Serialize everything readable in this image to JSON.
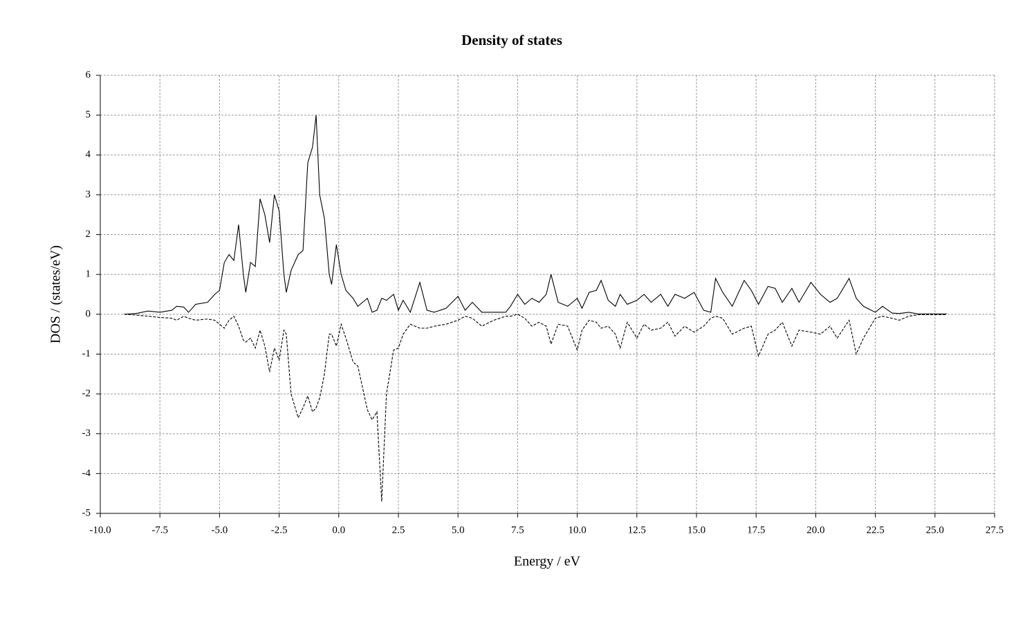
{
  "chart_data": {
    "type": "line",
    "title": "Density of states",
    "x_label": "Energy / eV",
    "y_label": "DOS / (states/eV)",
    "x": [
      -9,
      -8.5,
      -8,
      -7.5,
      -7,
      -6.8,
      -6.5,
      -6.3,
      -6,
      -5.5,
      -5.2,
      -5,
      -4.8,
      -4.6,
      -4.4,
      -4.2,
      -4,
      -3.9,
      -3.7,
      -3.5,
      -3.3,
      -3.1,
      -2.9,
      -2.7,
      -2.5,
      -2.3,
      -2.2,
      -2,
      -1.7,
      -1.5,
      -1.3,
      -1.1,
      -0.95,
      -0.8,
      -0.6,
      -0.4,
      -0.3,
      -0.1,
      0.1,
      0.3,
      0.6,
      0.8,
      1.2,
      1.4,
      1.6,
      1.8,
      2,
      2.3,
      2.5,
      2.7,
      3,
      3.4,
      3.7,
      4,
      4.5,
      5,
      5.3,
      5.6,
      6,
      6.5,
      7,
      7.2,
      7.5,
      7.8,
      8.1,
      8.4,
      8.7,
      8.9,
      9.2,
      9.6,
      10,
      10.2,
      10.5,
      10.8,
      11,
      11.3,
      11.6,
      11.8,
      12.1,
      12.5,
      12.8,
      13.1,
      13.5,
      13.8,
      14.1,
      14.5,
      14.9,
      15.3,
      15.6,
      15.8,
      16.1,
      16.5,
      17,
      17.3,
      17.6,
      18,
      18.3,
      18.6,
      19,
      19.3,
      19.8,
      20.2,
      20.6,
      20.9,
      21.4,
      21.7,
      22,
      22.5,
      22.8,
      23.2,
      23.5,
      23.9,
      24.3,
      25.5
    ],
    "series": [
      {
        "color": "#000000",
        "line_style": "solid",
        "values": [
          0,
          0.02,
          0.08,
          0.05,
          0.1,
          0.2,
          0.18,
          0.05,
          0.25,
          0.3,
          0.5,
          0.6,
          1.3,
          1.5,
          1.35,
          2.25,
          1.0,
          0.55,
          1.3,
          1.2,
          2.9,
          2.5,
          1.8,
          3.0,
          2.6,
          1.0,
          0.55,
          1.1,
          1.5,
          1.6,
          3.8,
          4.2,
          5.0,
          3.0,
          2.4,
          1.0,
          0.75,
          1.75,
          1.0,
          0.6,
          0.4,
          0.2,
          0.4,
          0.05,
          0.1,
          0.4,
          0.35,
          0.5,
          0.1,
          0.35,
          0.05,
          0.8,
          0.1,
          0.05,
          0.15,
          0.45,
          0.1,
          0.3,
          0.05,
          0.05,
          0.05,
          0.2,
          0.5,
          0.25,
          0.4,
          0.3,
          0.5,
          1.0,
          0.3,
          0.2,
          0.4,
          0.15,
          0.55,
          0.6,
          0.85,
          0.35,
          0.2,
          0.5,
          0.25,
          0.35,
          0.5,
          0.3,
          0.5,
          0.2,
          0.5,
          0.4,
          0.55,
          0.1,
          0.05,
          0.9,
          0.55,
          0.2,
          0.85,
          0.6,
          0.25,
          0.7,
          0.65,
          0.3,
          0.65,
          0.3,
          0.8,
          0.5,
          0.3,
          0.4,
          0.9,
          0.4,
          0.2,
          0.05,
          0.2,
          0.03,
          0.02,
          0.05,
          0.01,
          0.01
        ]
      },
      {
        "color": "#000000",
        "line_style": "dashed",
        "values": [
          0,
          -0.02,
          -0.05,
          -0.08,
          -0.1,
          -0.15,
          -0.05,
          -0.1,
          -0.15,
          -0.12,
          -0.15,
          -0.25,
          -0.35,
          -0.15,
          -0.05,
          -0.3,
          -0.65,
          -0.7,
          -0.6,
          -0.85,
          -0.4,
          -0.8,
          -1.45,
          -0.85,
          -1.15,
          -0.4,
          -0.5,
          -2.0,
          -2.6,
          -2.35,
          -2.05,
          -2.45,
          -2.35,
          -2.1,
          -1.5,
          -0.5,
          -0.5,
          -0.8,
          -0.25,
          -0.6,
          -1.2,
          -1.3,
          -2.4,
          -2.65,
          -2.45,
          -4.7,
          -2.0,
          -0.9,
          -0.85,
          -0.5,
          -0.25,
          -0.35,
          -0.35,
          -0.3,
          -0.25,
          -0.15,
          -0.05,
          -0.1,
          -0.3,
          -0.15,
          -0.05,
          -0.05,
          0,
          -0.1,
          -0.3,
          -0.2,
          -0.3,
          -0.75,
          -0.25,
          -0.3,
          -0.9,
          -0.4,
          -0.15,
          -0.2,
          -0.35,
          -0.3,
          -0.5,
          -0.85,
          -0.2,
          -0.6,
          -0.25,
          -0.4,
          -0.35,
          -0.2,
          -0.55,
          -0.3,
          -0.45,
          -0.3,
          -0.1,
          -0.05,
          -0.1,
          -0.5,
          -0.35,
          -0.3,
          -1.05,
          -0.5,
          -0.4,
          -0.2,
          -0.8,
          -0.4,
          -0.45,
          -0.5,
          -0.3,
          -0.6,
          -0.15,
          -1.0,
          -0.6,
          -0.1,
          -0.05,
          -0.1,
          -0.15,
          -0.05,
          -0.01,
          -0.01
        ]
      }
    ],
    "xlim": [
      -10,
      27.5
    ],
    "xticks": [
      {
        "value": -10,
        "label": "-10.0"
      },
      {
        "value": -7.5,
        "label": "-7.5"
      },
      {
        "value": -5,
        "label": "-5.0"
      },
      {
        "value": -2.5,
        "label": "-2.5"
      },
      {
        "value": 0,
        "label": "0.0"
      },
      {
        "value": 2.5,
        "label": "2.5"
      },
      {
        "value": 5,
        "label": "5.0"
      },
      {
        "value": 7.5,
        "label": "7.5"
      },
      {
        "value": 10,
        "label": "10.0"
      },
      {
        "value": 12.5,
        "label": "12.5"
      },
      {
        "value": 15,
        "label": "15.0"
      },
      {
        "value": 17.5,
        "label": "17.5"
      },
      {
        "value": 20,
        "label": "20.0"
      },
      {
        "value": 22.5,
        "label": "22.5"
      },
      {
        "value": 25,
        "label": "25.0"
      },
      {
        "value": 27.5,
        "label": "27.5"
      }
    ],
    "ylim": [
      -5,
      6
    ],
    "yticks": [
      -5,
      -4,
      -3,
      -2,
      -1,
      0,
      1,
      2,
      3,
      4,
      5,
      6
    ],
    "grid": true
  }
}
